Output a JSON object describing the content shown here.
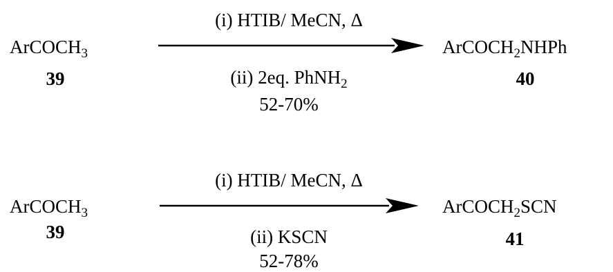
{
  "reactions": [
    {
      "reactant": {
        "main": "ArCOCH",
        "sub": "3",
        "number": "39"
      },
      "conditions": {
        "top": "(i) HTIB/ MeCN, Δ",
        "bottom_main": "(ii) 2eq. PhNH",
        "bottom_sub": "2",
        "bottom_tail": "",
        "yield": "52-70%"
      },
      "product": {
        "pre": "ArCOCH",
        "sub": "2",
        "post": "NHPh",
        "number": "40"
      }
    },
    {
      "reactant": {
        "main": "ArCOCH",
        "sub": "3",
        "number": "39"
      },
      "conditions": {
        "top": "(i) HTIB/ MeCN, Δ",
        "bottom_main": "(ii) KSCN",
        "bottom_sub": "",
        "bottom_tail": "",
        "yield": "52-78%"
      },
      "product": {
        "pre": "ArCOCH",
        "sub": "2",
        "post": "SCN",
        "number": "41"
      }
    }
  ],
  "colors": {
    "text": "#000000",
    "arrow": "#000000",
    "background": "#ffffff"
  }
}
